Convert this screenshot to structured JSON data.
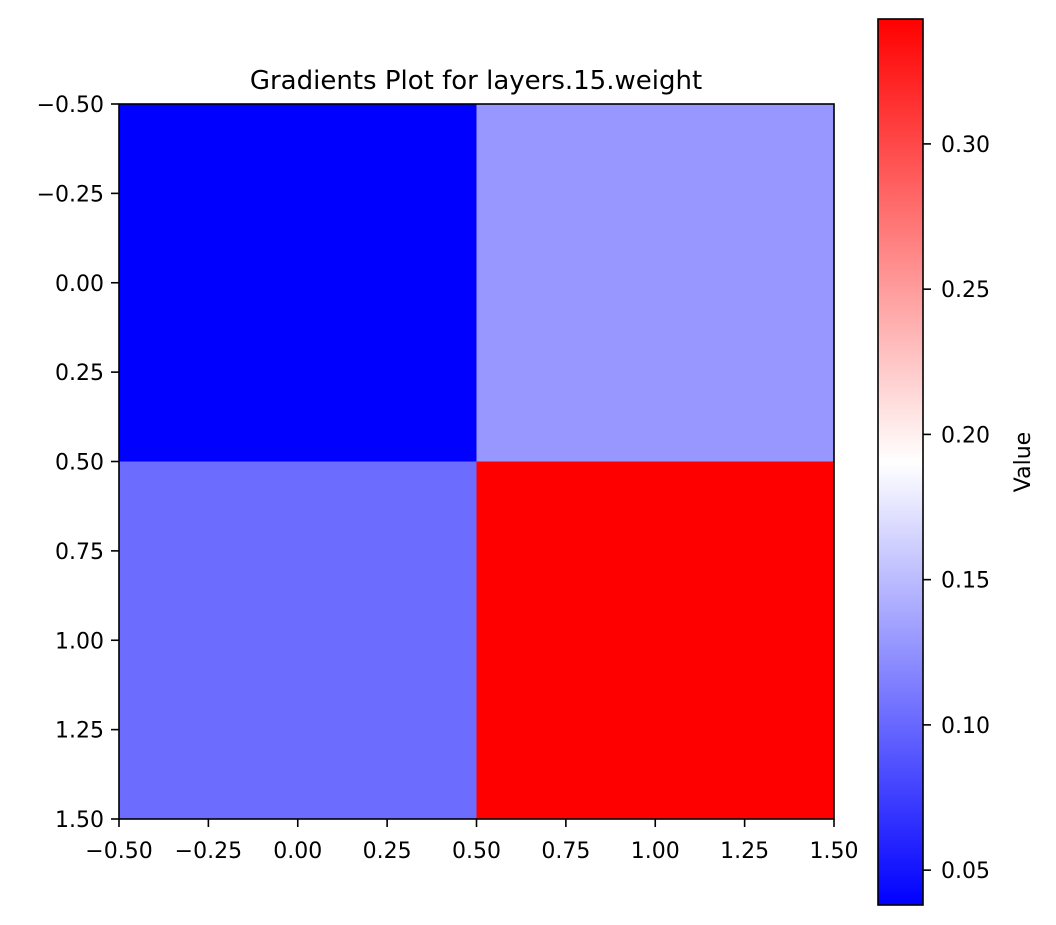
{
  "chart_data": {
    "type": "heatmap",
    "title": "Gradients Plot for layers.15.weight",
    "xlabel": "",
    "ylabel": "",
    "x_ticks": [
      "−0.50",
      "−0.25",
      "0.00",
      "0.25",
      "0.50",
      "0.75",
      "1.00",
      "1.25",
      "1.50"
    ],
    "y_ticks": [
      "−0.50",
      "−0.25",
      "0.00",
      "0.25",
      "0.50",
      "0.75",
      "1.00",
      "1.25",
      "1.50"
    ],
    "x_tick_values": [
      -0.5,
      -0.25,
      0.0,
      0.25,
      0.5,
      0.75,
      1.0,
      1.25,
      1.5
    ],
    "y_tick_values": [
      -0.5,
      -0.25,
      0.0,
      0.25,
      0.5,
      0.75,
      1.0,
      1.25,
      1.5
    ],
    "xlim": [
      -0.5,
      1.5
    ],
    "ylim": [
      1.5,
      -0.5
    ],
    "rows": 2,
    "cols": 2,
    "values": [
      [
        0.038,
        0.135
      ],
      [
        0.108,
        0.343
      ]
    ],
    "colormap": "bwr",
    "colormap_colors": [
      "#0000ff",
      "#ffffff",
      "#ff0000"
    ],
    "cell_colors": [
      [
        "#0000ff",
        "#9797ff"
      ],
      [
        "#6c6cff",
        "#ff0000"
      ]
    ],
    "colorbar": {
      "label": "Value",
      "range": [
        0.038,
        0.343
      ],
      "tick_values": [
        0.05,
        0.1,
        0.15,
        0.2,
        0.25,
        0.3
      ],
      "tick_labels": [
        "0.05",
        "0.10",
        "0.15",
        "0.20",
        "0.25",
        "0.30"
      ]
    },
    "grid": false
  }
}
